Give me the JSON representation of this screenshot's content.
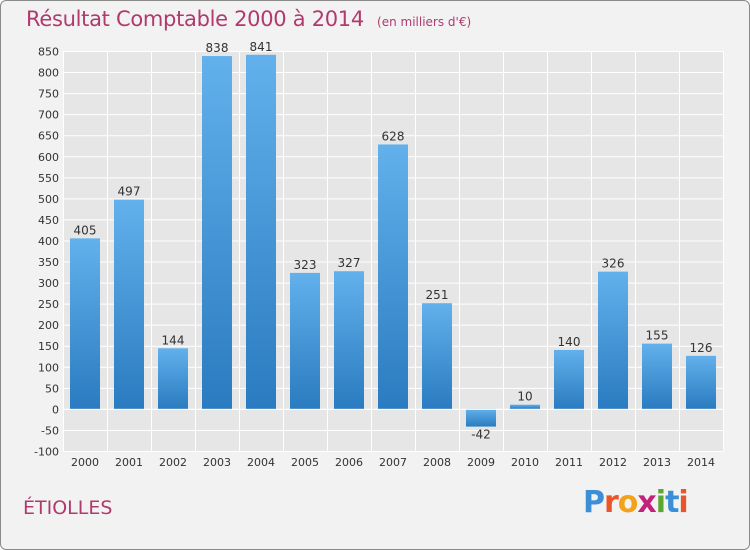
{
  "title": "Résultat Comptable 2000 à 2014",
  "subtitle": "(en milliers d'€)",
  "commune": "ÉTIOLLES",
  "logo": {
    "text": "Proxiti",
    "colors": [
      "#3b8fd6",
      "#e8562a",
      "#f2a31b",
      "#c4227a",
      "#5aa832",
      "#3b8fd6",
      "#e8562a"
    ]
  },
  "colors": {
    "bar_top": "#62b1ec",
    "bar_bottom": "#2a7bc0",
    "grid": "#ffffff",
    "axis_text": "#333333",
    "accent": "#b03a6e"
  },
  "chart_data": {
    "type": "bar",
    "title": "Résultat Comptable 2000 à 2014",
    "xlabel": "",
    "ylabel": "",
    "categories": [
      "2000",
      "2001",
      "2002",
      "2003",
      "2004",
      "2005",
      "2006",
      "2007",
      "2008",
      "2009",
      "2010",
      "2011",
      "2012",
      "2013",
      "2014"
    ],
    "values": [
      405,
      497,
      144,
      838,
      841,
      323,
      327,
      628,
      251,
      -42,
      10,
      140,
      326,
      155,
      126
    ],
    "labels": [
      "405",
      "497",
      "144",
      "838",
      "841",
      "323",
      "327",
      "628",
      "251",
      "-42",
      "10",
      "140",
      "326",
      "155",
      "126"
    ],
    "yticks": [
      -100,
      -50,
      0,
      50,
      100,
      150,
      200,
      250,
      300,
      350,
      400,
      450,
      500,
      550,
      600,
      650,
      700,
      750,
      800,
      850
    ],
    "ylim": [
      -100,
      850
    ],
    "grid": true
  }
}
